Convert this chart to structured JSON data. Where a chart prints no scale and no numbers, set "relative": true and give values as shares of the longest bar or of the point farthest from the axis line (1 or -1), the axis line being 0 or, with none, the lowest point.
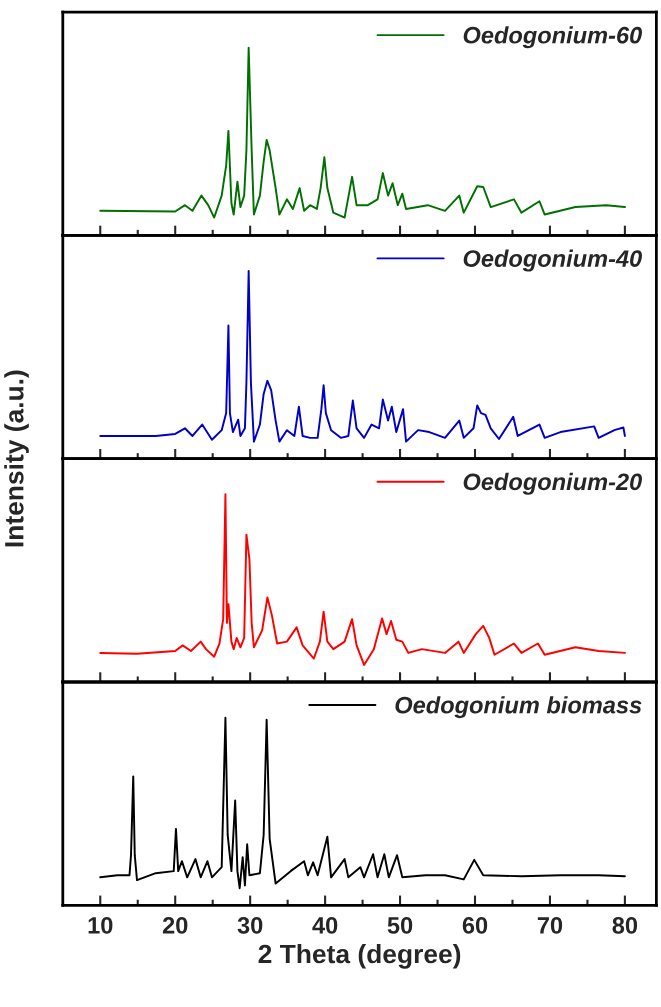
{
  "chart_data": [
    {
      "type": "line",
      "relative": true,
      "xlim": [
        5,
        84.2
      ],
      "tick_labels": false,
      "legend": "top right",
      "xticks": [
        10,
        {
          "value": 15,
          "label": null
        },
        20,
        {
          "value": 25,
          "label": null
        },
        30,
        {
          "value": 35,
          "label": null
        },
        40,
        {
          "value": 45,
          "label": null
        },
        50,
        {
          "value": 55,
          "label": null
        },
        60,
        {
          "value": 65,
          "label": null
        },
        70,
        {
          "value": 75,
          "label": null
        },
        80
      ],
      "x": [
        10,
        20.0,
        21.3,
        22.3,
        23.5,
        24.4,
        25.2,
        26.2,
        26.8,
        27.1,
        27.5,
        27.8,
        28.3,
        28.7,
        29.2,
        29.5,
        29.8,
        30.2,
        30.5,
        31.3,
        31.8,
        32.2,
        32.6,
        33.4,
        33.9,
        34.9,
        35.7,
        36.6,
        37.2,
        38.0,
        38.9,
        39.4,
        39.9,
        40.3,
        41.1,
        42.6,
        43.6,
        44.2,
        45.7,
        47.0,
        47.7,
        48.4,
        49.0,
        49.7,
        50.3,
        50.8,
        53.7,
        56.0,
        57.9,
        58.5,
        60.3,
        61.1,
        62.1,
        65.2,
        66.2,
        68.6,
        69.3,
        73.4,
        77.5,
        80
      ],
      "series": [
        {
          "name": "Oedogonium-60",
          "color": "#007000",
          "values": [
            0.131,
            0.127,
            0.161,
            0.131,
            0.212,
            0.161,
            0.095,
            0.212,
            0.373,
            0.557,
            0.171,
            0.111,
            0.286,
            0.151,
            0.212,
            0.453,
            1,
            0.453,
            0.111,
            0.212,
            0.393,
            0.509,
            0.453,
            0.252,
            0.111,
            0.192,
            0.141,
            0.252,
            0.131,
            0.161,
            0.141,
            0.252,
            0.416,
            0.252,
            0.121,
            0.095,
            0.312,
            0.161,
            0.161,
            0.192,
            0.332,
            0.212,
            0.278,
            0.161,
            0.222,
            0.141,
            0.161,
            0.131,
            0.212,
            0.121,
            0.262,
            0.258,
            0.151,
            0.192,
            0.121,
            0.182,
            0.111,
            0.151,
            0.161,
            0.151
          ]
        }
      ]
    },
    {
      "type": "line",
      "relative": true,
      "xlim": [
        5,
        84.2
      ],
      "tick_labels": false,
      "legend": "top right",
      "xticks": [
        10,
        {
          "value": 15,
          "label": null
        },
        20,
        {
          "value": 25,
          "label": null
        },
        30,
        {
          "value": 35,
          "label": null
        },
        40,
        {
          "value": 45,
          "label": null
        },
        50,
        {
          "value": 55,
          "label": null
        },
        60,
        {
          "value": 65,
          "label": null
        },
        70,
        {
          "value": 75,
          "label": null
        },
        80
      ],
      "x": [
        10,
        17.4,
        20.0,
        21.3,
        22.3,
        23.6,
        24.9,
        26.2,
        26.8,
        27.1,
        27.3,
        27.7,
        28.4,
        28.7,
        29.3,
        29.5,
        29.8,
        30.1,
        30.5,
        31.3,
        31.8,
        32.3,
        32.8,
        33.4,
        33.9,
        34.9,
        35.9,
        36.5,
        37.0,
        38.0,
        39.0,
        39.5,
        39.8,
        40.1,
        40.8,
        42.1,
        43.1,
        43.7,
        44.2,
        45.2,
        46.2,
        47.2,
        47.7,
        48.4,
        48.9,
        49.5,
        50.4,
        50.8,
        52.4,
        53.9,
        56.0,
        57.9,
        58.5,
        59.8,
        60.3,
        60.8,
        61.4,
        62.1,
        63.2,
        65.1,
        65.7,
        68.6,
        69.3,
        71.4,
        75.9,
        76.5,
        78.6,
        79.8,
        80
      ],
      "series": [
        {
          "name": "Oedogonium-40",
          "color": "#0000c8",
          "values": [
            0.121,
            0.121,
            0.132,
            0.162,
            0.121,
            0.182,
            0.101,
            0.152,
            0.243,
            0.71,
            0.243,
            0.142,
            0.208,
            0.121,
            0.162,
            0.405,
            1,
            0.405,
            0.091,
            0.182,
            0.345,
            0.415,
            0.365,
            0.203,
            0.091,
            0.152,
            0.121,
            0.277,
            0.121,
            0.111,
            0.111,
            0.264,
            0.391,
            0.243,
            0.152,
            0.111,
            0.121,
            0.31,
            0.162,
            0.111,
            0.182,
            0.162,
            0.315,
            0.203,
            0.277,
            0.142,
            0.264,
            0.091,
            0.152,
            0.142,
            0.111,
            0.203,
            0.111,
            0.162,
            0.284,
            0.243,
            0.233,
            0.162,
            0.105,
            0.223,
            0.121,
            0.182,
            0.111,
            0.142,
            0.172,
            0.111,
            0.152,
            0.166,
            0.121
          ]
        }
      ]
    },
    {
      "type": "line",
      "relative": true,
      "xlim": [
        5,
        84.2
      ],
      "tick_labels": false,
      "legend": "top right",
      "xticks": [
        10,
        {
          "value": 15,
          "label": null
        },
        20,
        {
          "value": 25,
          "label": null
        },
        30,
        {
          "value": 35,
          "label": null
        },
        40,
        {
          "value": 45,
          "label": null
        },
        50,
        {
          "value": 55,
          "label": null
        },
        60,
        {
          "value": 65,
          "label": null
        },
        70,
        {
          "value": 75,
          "label": null
        },
        80
      ],
      "x": [
        10,
        14.9,
        20.0,
        21.0,
        22.1,
        23.4,
        24.1,
        25.2,
        25.9,
        26.4,
        26.7,
        26.9,
        27.1,
        27.5,
        27.8,
        28.2,
        28.7,
        29.2,
        29.5,
        29.9,
        30.2,
        30.5,
        31.6,
        32.3,
        32.9,
        33.6,
        34.9,
        36.2,
        37.0,
        38.5,
        39.3,
        39.8,
        40.3,
        41.1,
        42.6,
        43.6,
        44.2,
        45.2,
        46.5,
        47.6,
        48.2,
        48.8,
        49.5,
        50.3,
        51.1,
        52.9,
        56.0,
        57.8,
        58.5,
        60.1,
        61.1,
        61.9,
        62.6,
        65.2,
        66.2,
        68.4,
        69.3,
        73.4,
        76.5,
        80
      ],
      "series": [
        {
          "name": "Oedogonium-20",
          "color": "#ff0000",
          "values": [
            0.155,
            0.151,
            0.165,
            0.195,
            0.165,
            0.215,
            0.175,
            0.135,
            0.205,
            0.335,
            1,
            0.315,
            0.415,
            0.215,
            0.175,
            0.235,
            0.185,
            0.235,
            0.785,
            0.655,
            0.315,
            0.185,
            0.275,
            0.451,
            0.355,
            0.205,
            0.215,
            0.291,
            0.195,
            0.125,
            0.215,
            0.375,
            0.215,
            0.175,
            0.215,
            0.335,
            0.195,
            0.091,
            0.175,
            0.339,
            0.255,
            0.325,
            0.225,
            0.215,
            0.155,
            0.175,
            0.155,
            0.215,
            0.155,
            0.255,
            0.299,
            0.235,
            0.145,
            0.205,
            0.155,
            0.205,
            0.145,
            0.185,
            0.165,
            0.155
          ]
        }
      ]
    },
    {
      "type": "line",
      "relative": true,
      "xlim": [
        5,
        84.2
      ],
      "legend": "top right",
      "xlabel": "2 Theta (degree)",
      "ylabel": "Intensity (a.u.)",
      "xticks": [
        10,
        {
          "value": 15,
          "label": null
        },
        20,
        {
          "value": 25,
          "label": null
        },
        30,
        {
          "value": 35,
          "label": null
        },
        40,
        {
          "value": 45,
          "label": null
        },
        50,
        {
          "value": 55,
          "label": null
        },
        60,
        {
          "value": 65,
          "label": null
        },
        70,
        {
          "value": 75,
          "label": null
        },
        80
      ],
      "x": [
        10,
        12.3,
        13.9,
        14.1,
        14.4,
        14.6,
        14.9,
        17.4,
        19.8,
        20.1,
        20.4,
        20.9,
        21.6,
        22.7,
        23.4,
        24.3,
        24.9,
        26.2,
        26.7,
        27.0,
        27.5,
        28.0,
        28.3,
        28.6,
        29.0,
        29.3,
        29.6,
        29.9,
        31.3,
        31.8,
        32.2,
        32.6,
        33.4,
        35.4,
        37.2,
        37.7,
        38.4,
        39.0,
        40.3,
        40.8,
        42.6,
        43.1,
        44.7,
        45.2,
        46.4,
        47.0,
        47.9,
        48.5,
        49.6,
        50.3,
        53.4,
        56.0,
        58.5,
        59.9,
        61.1,
        66.2,
        71.4,
        76.5,
        80
      ],
      "series": [
        {
          "name": "Oedogonium biomass",
          "color": "#000000",
          "values": [
            0.149,
            0.16,
            0.16,
            0.267,
            0.687,
            0.267,
            0.134,
            0.171,
            0.182,
            0.407,
            0.182,
            0.235,
            0.149,
            0.246,
            0.149,
            0.235,
            0.149,
            0.203,
            1,
            0.375,
            0.182,
            0.558,
            0.182,
            0.091,
            0.256,
            0.106,
            0.325,
            0.16,
            0.171,
            0.375,
            0.989,
            0.354,
            0.116,
            0.182,
            0.235,
            0.16,
            0.229,
            0.16,
            0.365,
            0.149,
            0.246,
            0.149,
            0.203,
            0.149,
            0.272,
            0.149,
            0.272,
            0.149,
            0.267,
            0.149,
            0.16,
            0.16,
            0.138,
            0.242,
            0.16,
            0.155,
            0.16,
            0.16,
            0.155
          ]
        }
      ]
    }
  ]
}
